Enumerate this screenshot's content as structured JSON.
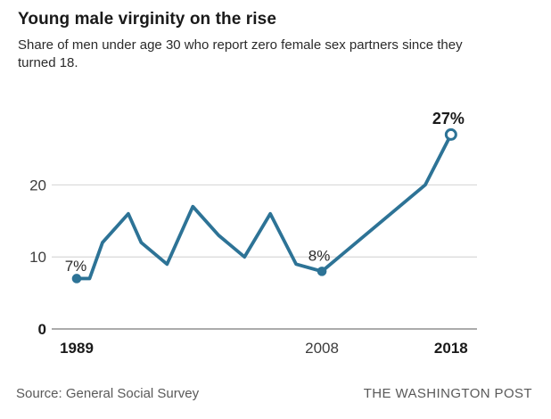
{
  "header": {
    "title": "Young male virginity on the rise",
    "subtitle": "Share of men under age 30 who report zero female sex partners since they turned 18."
  },
  "chart_data": {
    "type": "line",
    "title": "Young male virginity on the rise",
    "xlabel": "",
    "ylabel": "",
    "x_range": [
      1989,
      2018
    ],
    "ylim": [
      0,
      30
    ],
    "grid": "horizontal",
    "legend": "none",
    "points": [
      {
        "year": 1989,
        "value": 7,
        "label": "7%",
        "marker": "filled"
      },
      {
        "year": 1990,
        "value": 7
      },
      {
        "year": 1991,
        "value": 12
      },
      {
        "year": 1993,
        "value": 16
      },
      {
        "year": 1994,
        "value": 12
      },
      {
        "year": 1996,
        "value": 9
      },
      {
        "year": 1998,
        "value": 17
      },
      {
        "year": 2000,
        "value": 13
      },
      {
        "year": 2002,
        "value": 10
      },
      {
        "year": 2004,
        "value": 16
      },
      {
        "year": 2006,
        "value": 9
      },
      {
        "year": 2008,
        "value": 8,
        "label": "8%",
        "marker": "filled"
      },
      {
        "year": 2016,
        "value": 20
      },
      {
        "year": 2018,
        "value": 27,
        "label": "27%",
        "marker": "open"
      }
    ],
    "y_axis": {
      "ticks": [
        0,
        10,
        20
      ],
      "emphasized_tick": 0
    },
    "x_axis": {
      "tick_labels": [
        {
          "year": 1989,
          "bold": true
        },
        {
          "year": 2008,
          "bold": false
        },
        {
          "year": 2018,
          "bold": true
        }
      ]
    },
    "colors": {
      "line": "#2d7396",
      "grid": "#d8d8d8",
      "baseline": "#8f8f8f",
      "text_dark": "#1a1a1a",
      "text_medium": "#3d3d3d",
      "annotation": "#2b2b2b"
    }
  },
  "footer": {
    "source": "Source: General Social Survey",
    "credit": "THE WASHINGTON POST"
  }
}
